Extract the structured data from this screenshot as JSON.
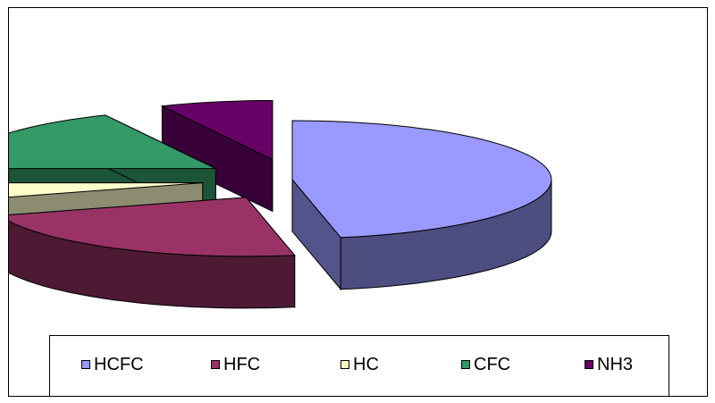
{
  "chart_data": {
    "type": "pie",
    "style": "3d-exploded",
    "title": "",
    "labels": [
      "HCFC",
      "HFC",
      "HC",
      "CFC",
      "NH3"
    ],
    "values": [
      47,
      23,
      5,
      18,
      7
    ],
    "colors": [
      "#9999ff",
      "#993366",
      "#ffffcc",
      "#339966",
      "#660066"
    ],
    "legend_position": "bottom"
  }
}
